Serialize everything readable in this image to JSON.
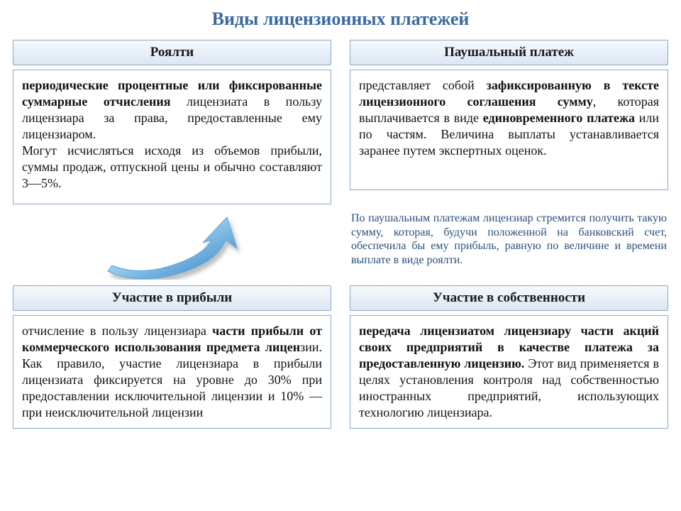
{
  "title": "Виды лицензионных платежей",
  "topLeft": {
    "header": "Роялти",
    "body_html": "<b>периодические процентные или фиксированные суммарные отчисления</b> лицензиата в пользу лицензиара за права, предоставленные ему лицензиаром.<br>Могут исчисляться исходя из объемов прибыли, суммы продаж, отпускной цены и обычно составляют 3—5%."
  },
  "topRight": {
    "header": "Паушальный платеж",
    "body_html": "представляет собой <b>зафиксированную в тексте лицензионного соглашения сумму</b>, которая выплачивается в виде <b>единовременного платежа</b> или по частям. Величина выплаты устанавливается заранее путем экспертных оценок."
  },
  "note": "По паушальным платежам лицензиар стремится получить такую сумму, которая, будучи положенной на банковский счет, обеспечила бы ему прибыль, равную по величине и времени выплате в виде роялти.",
  "bottomLeft": {
    "header": "Участие в прибыли",
    "body_html": "отчисление в пользу лицензиара <b>части прибыли от коммерческого использования предмета лицен</b>зии. Как правило, участие лицензиара в прибыли лицензиата фиксируется на уровне до 30% при предоставлении исключительной лицензии и 10% — при неисключительной лицензии"
  },
  "bottomRight": {
    "header": "Участие в собственности",
    "body_html": "<b>передача лицензиатом лицензиару части акций своих предприятий в качестве платежа за предоставленную лицензию.</b> Этот вид применяется в целях установления контроля над собственностью иностранных предприятий, использующих технологию лицензиара."
  },
  "colors": {
    "title": "#3b6aa0",
    "border": "#8aa8c8",
    "header_grad_top": "#f5f9fd",
    "header_grad_bottom": "#dbe7f3",
    "note_text": "#2a4f7a",
    "arrow_light": "#bfe1f7",
    "arrow_mid": "#6fb7e8",
    "arrow_dark": "#2f7fc2"
  }
}
